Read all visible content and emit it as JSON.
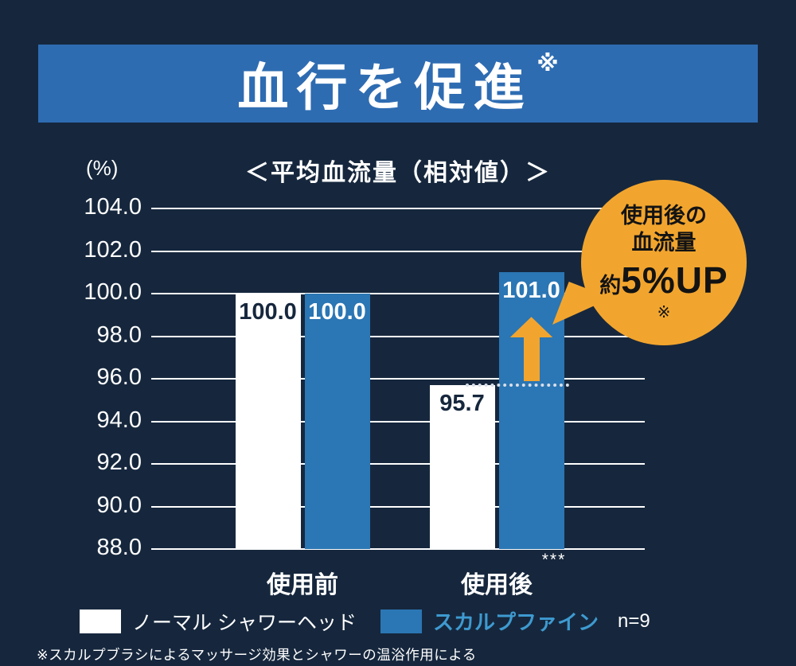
{
  "colors": {
    "background": "#16273d",
    "banner": "#2e6cb2",
    "orange": "#f2a52e",
    "bar_blue": "#2b76b4",
    "legend_blue_text": "#3e9ad0",
    "grid": "#ffffff",
    "dotted": "#d8dee8"
  },
  "banner": {
    "title": "血行を促進",
    "note_mark": "※"
  },
  "footnote": "※スカルプブラシによるマッサージ効果とシャワーの温浴作用による",
  "chart_data": {
    "type": "bar",
    "title": "＜平均血流量（相対値）＞",
    "unit_label": "(%)",
    "categories": [
      "使用前",
      "使用後"
    ],
    "category_notes": [
      "",
      "***"
    ],
    "series": [
      {
        "name": "ノーマル シャワーヘッド",
        "color": "#ffffff",
        "label_color": "#16273d",
        "values": [
          100.0,
          95.7
        ]
      },
      {
        "name": "スカルプファイン",
        "color": "#2b76b4",
        "label_color": "#ffffff",
        "values": [
          100.0,
          101.0
        ]
      }
    ],
    "ylim": [
      88.0,
      104.0
    ],
    "yticks": [
      104.0,
      102.0,
      100.0,
      98.0,
      96.0,
      94.0,
      92.0,
      90.0,
      88.0
    ],
    "grid": true,
    "legend_position": "bottom",
    "sample_size": "n=9",
    "annotations": {
      "callout": {
        "line1": "使用後の",
        "line2": "血流量",
        "value_prefix": "約",
        "value": "5%UP",
        "note": "※"
      },
      "dotted_line_value": 95.7,
      "arrow_direction": "up"
    }
  }
}
